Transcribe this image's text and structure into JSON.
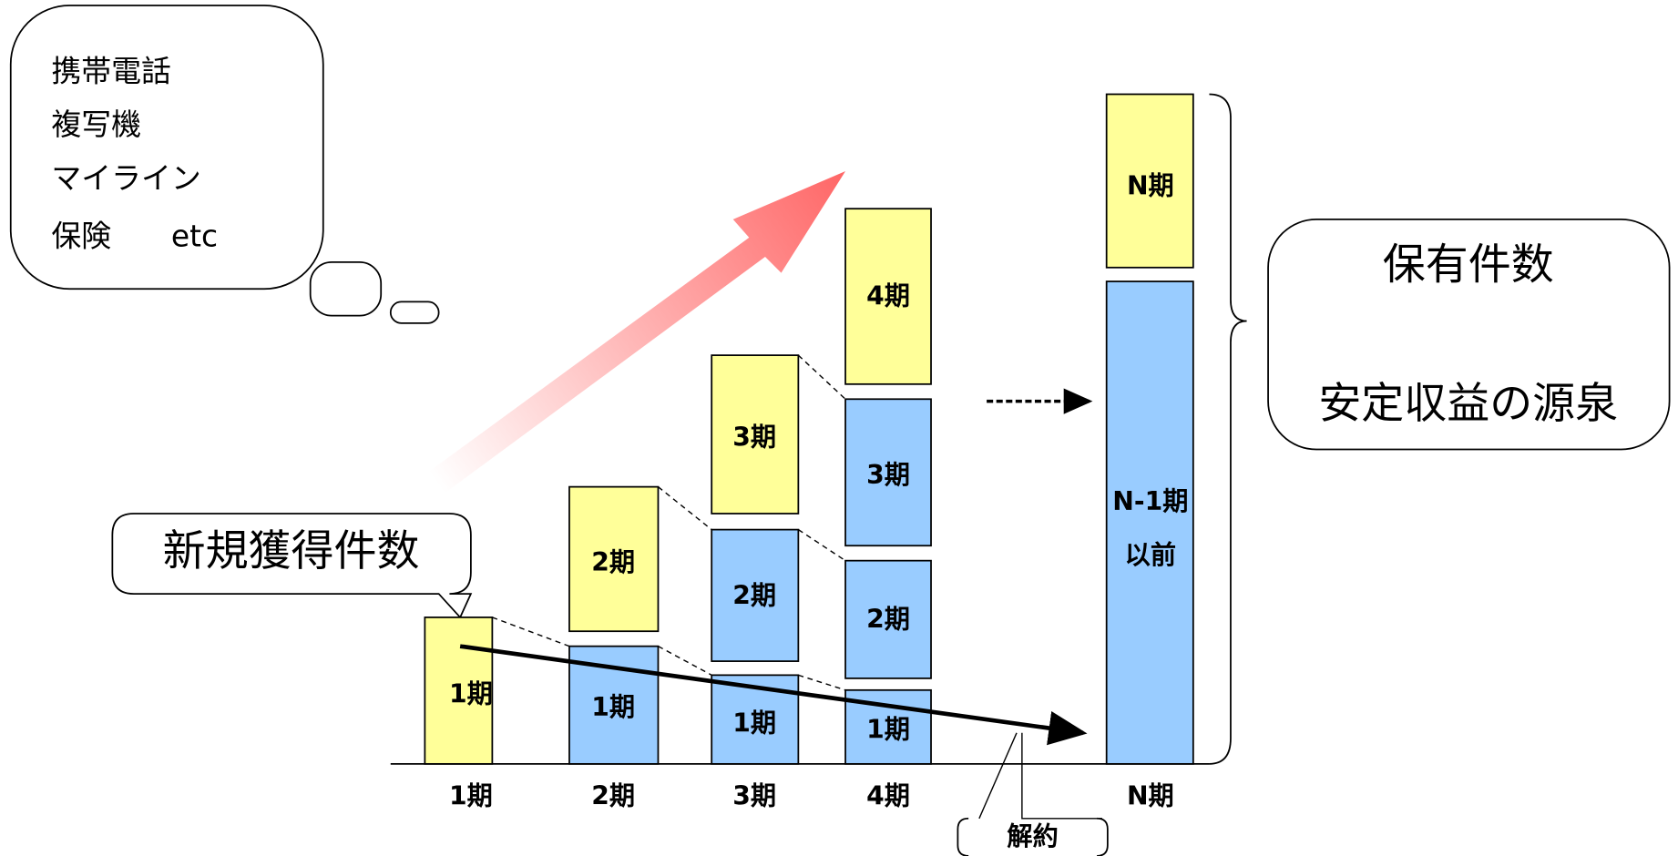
{
  "bubble": {
    "lines": [
      "携帯電話",
      "複写機",
      "マイライン",
      "保険　　etc"
    ]
  },
  "callouts": {
    "new_acquisitions": "新規獲得件数",
    "cancellation": "解約"
  },
  "holdings": {
    "lines": [
      "保有件数",
      "安定収益の源泉"
    ]
  },
  "columns": [
    {
      "label": "1期",
      "segments": [
        "1期"
      ]
    },
    {
      "label": "2期",
      "segments": [
        "1期",
        "2期"
      ]
    },
    {
      "label": "3期",
      "segments": [
        "1期",
        "2期",
        "3期"
      ]
    },
    {
      "label": "4期",
      "segments": [
        "1期",
        "2期",
        "3期",
        "4期"
      ]
    },
    {
      "label": "N期",
      "segments": [
        [
          "N-1期",
          "以前"
        ],
        "N期"
      ]
    }
  ]
}
